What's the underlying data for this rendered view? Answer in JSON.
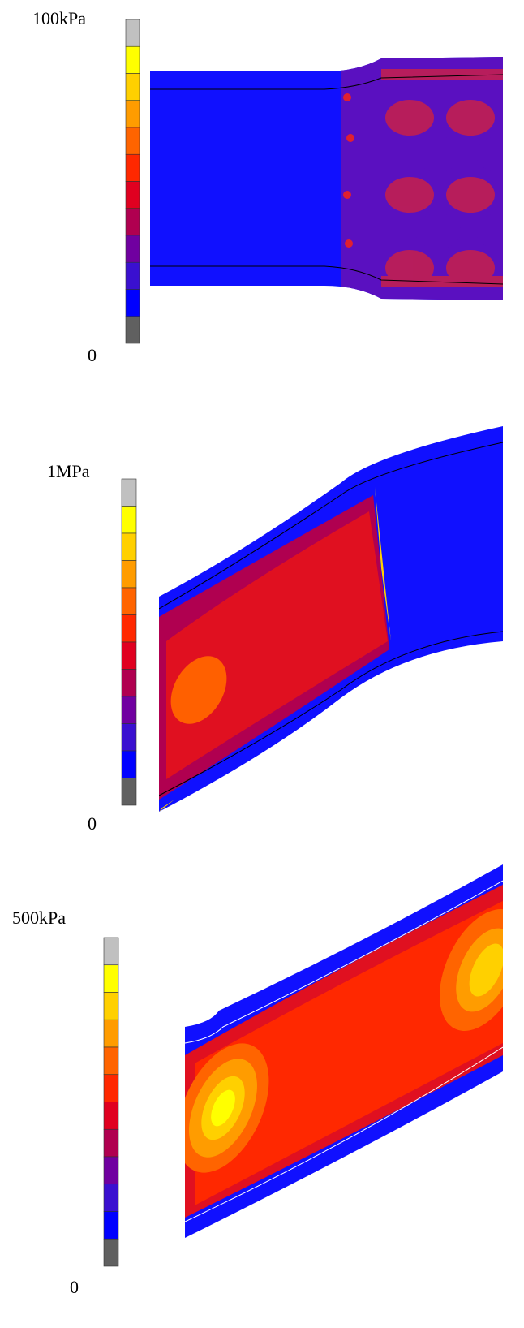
{
  "panels": [
    {
      "max_label": "100kPa",
      "min_label": "0"
    },
    {
      "max_label": "1MPa",
      "min_label": "0"
    },
    {
      "max_label": "500kPa",
      "min_label": "0"
    }
  ]
}
